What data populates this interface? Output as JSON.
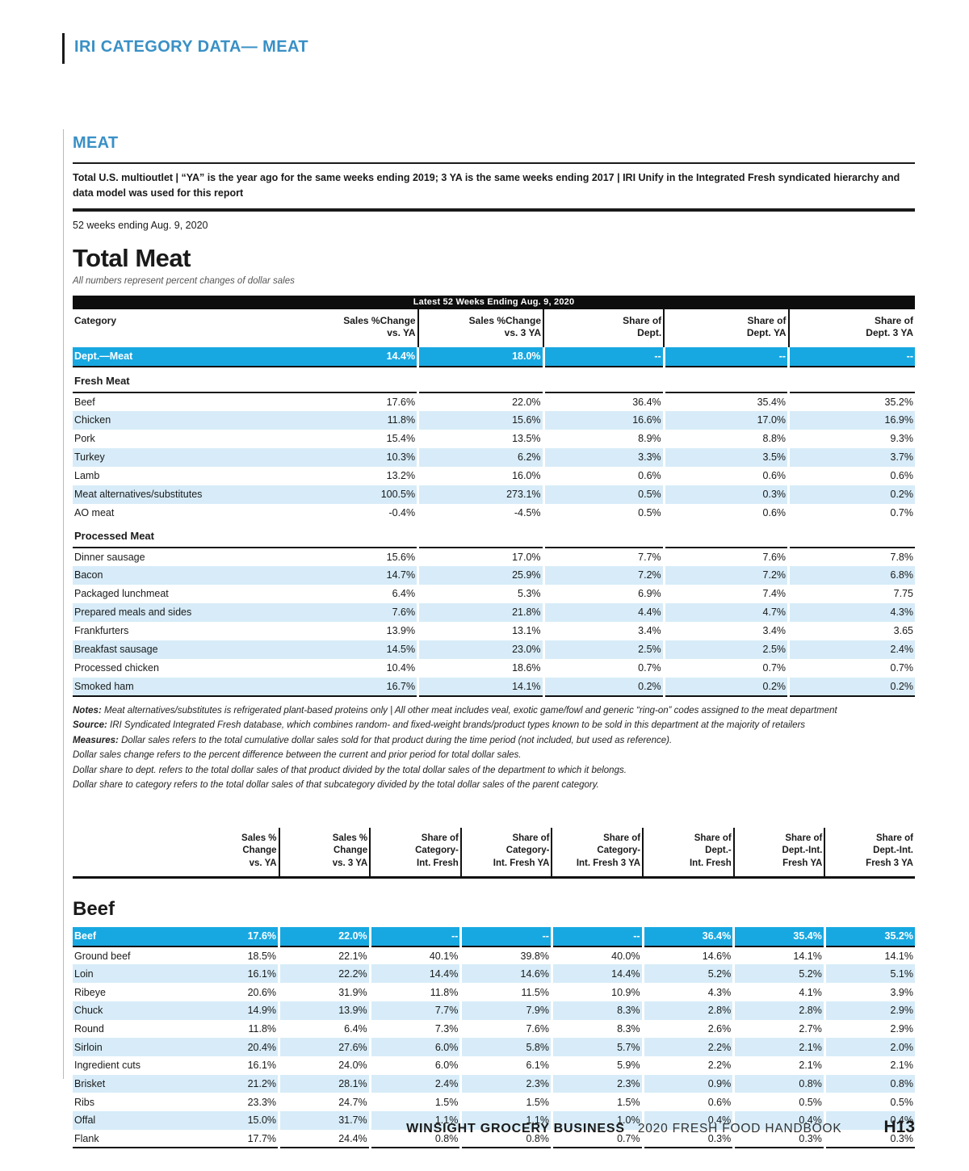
{
  "header": {
    "title": "IRI CATEGORY DATA— MEAT"
  },
  "meat": {
    "heading": "MEAT",
    "note": "Total U.S. multioutlet | “YA” is the year ago for the same weeks ending 2019; 3 YA is the same weeks ending 2017 | IRI Unify in the Integrated Fresh syndicated hierarchy and data model was used for this report",
    "period": "52 weeks ending Aug. 9, 2020"
  },
  "colors": {
    "accent_blue": "#18a8e1",
    "row_light_blue": "#d7ecf8",
    "heading_blue": "#3990c6",
    "band_black": "#0d0d0d"
  },
  "table1": {
    "title": "Total Meat",
    "subtitle": "All numbers represent percent changes of dollar sales",
    "band": "Latest 52 Weeks Ending Aug. 9, 2020",
    "columns": [
      "Category",
      "Sales %Change\nvs. YA",
      "Sales %Change\nvs. 3 YA",
      "Share of\nDept.",
      "Share of\nDept. YA",
      "Share of\nDept. 3 YA"
    ],
    "total_row": {
      "label": "Dept.—Meat",
      "values": [
        "14.4%",
        "18.0%",
        "--",
        "--",
        "--"
      ]
    },
    "sections": [
      {
        "name": "Fresh Meat",
        "rows": [
          {
            "label": "Beef",
            "values": [
              "17.6%",
              "22.0%",
              "36.4%",
              "35.4%",
              "35.2%"
            ]
          },
          {
            "label": "Chicken",
            "values": [
              "11.8%",
              "15.6%",
              "16.6%",
              "17.0%",
              "16.9%"
            ]
          },
          {
            "label": "Pork",
            "values": [
              "15.4%",
              "13.5%",
              "8.9%",
              "8.8%",
              "9.3%"
            ]
          },
          {
            "label": "Turkey",
            "values": [
              "10.3%",
              "6.2%",
              "3.3%",
              "3.5%",
              "3.7%"
            ]
          },
          {
            "label": "Lamb",
            "values": [
              "13.2%",
              "16.0%",
              "0.6%",
              "0.6%",
              "0.6%"
            ]
          },
          {
            "label": "Meat alternatives/substitutes",
            "values": [
              "100.5%",
              "273.1%",
              "0.5%",
              "0.3%",
              "0.2%"
            ]
          },
          {
            "label": "AO meat",
            "values": [
              "-0.4%",
              "-4.5%",
              "0.5%",
              "0.6%",
              "0.7%"
            ]
          }
        ]
      },
      {
        "name": "Processed Meat",
        "rows": [
          {
            "label": "Dinner sausage",
            "values": [
              "15.6%",
              "17.0%",
              "7.7%",
              "7.6%",
              "7.8%"
            ]
          },
          {
            "label": "Bacon",
            "values": [
              "14.7%",
              "25.9%",
              "7.2%",
              "7.2%",
              "6.8%"
            ]
          },
          {
            "label": "Packaged lunchmeat",
            "values": [
              "6.4%",
              "5.3%",
              "6.9%",
              "7.4%",
              "7.75"
            ]
          },
          {
            "label": "Prepared meals and sides",
            "values": [
              "7.6%",
              "21.8%",
              "4.4%",
              "4.7%",
              "4.3%"
            ]
          },
          {
            "label": "Frankfurters",
            "values": [
              "13.9%",
              "13.1%",
              "3.4%",
              "3.4%",
              "3.65"
            ]
          },
          {
            "label": "Breakfast sausage",
            "values": [
              "14.5%",
              "23.0%",
              "2.5%",
              "2.5%",
              "2.4%"
            ]
          },
          {
            "label": "Processed chicken",
            "values": [
              "10.4%",
              "18.6%",
              "0.7%",
              "0.7%",
              "0.7%"
            ]
          },
          {
            "label": "Smoked ham",
            "values": [
              "16.7%",
              "14.1%",
              "0.2%",
              "0.2%",
              "0.2%"
            ]
          }
        ]
      }
    ]
  },
  "notes": [
    {
      "label": "Notes:",
      "text": "Meat alternatives/substitutes is refrigerated plant-based proteins only | All other meat includes veal, exotic game/fowl and generic “ring-on” codes assigned to the meat department"
    },
    {
      "label": "Source:",
      "text": "IRI Syndicated Integrated Fresh database, which combines random- and fixed-weight brands/product types known to be sold in this department at the majority of retailers"
    },
    {
      "label": "Measures:",
      "text": "Dollar sales refers to the total cumulative dollar sales sold for that product during the time period (not included, but used as reference)."
    },
    {
      "label": "",
      "text": "Dollar sales change refers to the percent difference between the current and prior period for total dollar sales."
    },
    {
      "label": "",
      "text": "Dollar share to dept. refers to the total dollar sales of that product divided by the total dollar sales of the department to which it belongs."
    },
    {
      "label": "",
      "text": "Dollar share to category refers to the total dollar sales of that subcategory divided by the total dollar sales of the parent category."
    }
  ],
  "table2": {
    "title": "Beef",
    "columns": [
      "",
      "Sales %\nChange\nvs. YA",
      "Sales %\nChange\nvs. 3 YA",
      "Share of\nCategory-\nInt. Fresh",
      "Share of\nCategory-\nInt. Fresh YA",
      "Share of\nCategory-\nInt. Fresh 3 YA",
      "Share of\nDept.-\nInt. Fresh",
      "Share of\nDept.-Int.\nFresh YA",
      "Share of\nDept.-Int.\nFresh 3 YA"
    ],
    "total_row": {
      "label": "Beef",
      "values": [
        "17.6%",
        "22.0%",
        "--",
        "--",
        "--",
        "36.4%",
        "35.4%",
        "35.2%"
      ]
    },
    "rows": [
      {
        "label": "Ground beef",
        "values": [
          "18.5%",
          "22.1%",
          "40.1%",
          "39.8%",
          "40.0%",
          "14.6%",
          "14.1%",
          "14.1%"
        ]
      },
      {
        "label": "Loin",
        "values": [
          "16.1%",
          "22.2%",
          "14.4%",
          "14.6%",
          "14.4%",
          "5.2%",
          "5.2%",
          "5.1%"
        ]
      },
      {
        "label": "Ribeye",
        "values": [
          "20.6%",
          "31.9%",
          "11.8%",
          "11.5%",
          "10.9%",
          "4.3%",
          "4.1%",
          "3.9%"
        ]
      },
      {
        "label": "Chuck",
        "values": [
          "14.9%",
          "13.9%",
          "7.7%",
          "7.9%",
          "8.3%",
          "2.8%",
          "2.8%",
          "2.9%"
        ]
      },
      {
        "label": "Round",
        "values": [
          "11.8%",
          "6.4%",
          "7.3%",
          "7.6%",
          "8.3%",
          "2.6%",
          "2.7%",
          "2.9%"
        ]
      },
      {
        "label": "Sirloin",
        "values": [
          "20.4%",
          "27.6%",
          "6.0%",
          "5.8%",
          "5.7%",
          "2.2%",
          "2.1%",
          "2.0%"
        ]
      },
      {
        "label": "Ingredient cuts",
        "values": [
          "16.1%",
          "24.0%",
          "6.0%",
          "6.1%",
          "5.9%",
          "2.2%",
          "2.1%",
          "2.1%"
        ]
      },
      {
        "label": "Brisket",
        "values": [
          "21.2%",
          "28.1%",
          "2.4%",
          "2.3%",
          "2.3%",
          "0.9%",
          "0.8%",
          "0.8%"
        ]
      },
      {
        "label": "Ribs",
        "values": [
          "23.3%",
          "24.7%",
          "1.5%",
          "1.5%",
          "1.5%",
          "0.6%",
          "0.5%",
          "0.5%"
        ]
      },
      {
        "label": "Offal",
        "values": [
          "15.0%",
          "31.7%",
          "1.1%",
          "1.1%",
          "1.0%",
          "0.4%",
          "0.4%",
          "0.4%"
        ]
      },
      {
        "label": "Flank",
        "values": [
          "17.7%",
          "24.4%",
          "0.8%",
          "0.8%",
          "0.7%",
          "0.3%",
          "0.3%",
          "0.3%"
        ]
      }
    ]
  },
  "footer": {
    "brand": "WINSIGHT GROCERY BUSINESS",
    "book": "2020 FRESH FOOD HANDBOOK",
    "page": "H13"
  }
}
